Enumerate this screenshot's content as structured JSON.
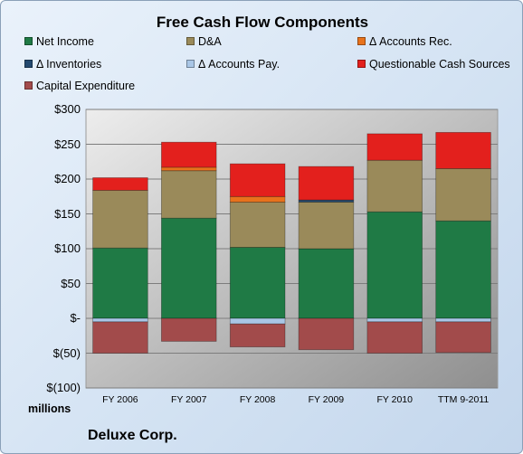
{
  "chart_data": {
    "type": "bar",
    "stacked": true,
    "title": "Free Cash Flow Components",
    "units_label": "millions",
    "company": "Deluxe Corp.",
    "categories": [
      "FY 2006",
      "FY 2007",
      "FY 2008",
      "FY 2009",
      "FY 2010",
      "TTM 9-2011"
    ],
    "y_ticks": [
      "$300",
      "$250",
      "$200",
      "$150",
      "$100",
      "$50",
      "$-",
      "$(50)",
      "$(100)"
    ],
    "ylim": [
      -100,
      300
    ],
    "grid": true,
    "legend_position": "top",
    "series": [
      {
        "name": "Net Income",
        "color": "#1f7a45",
        "values": [
          101,
          144,
          102,
          100,
          153,
          140
        ]
      },
      {
        "name": "D&A",
        "color": "#9a8a5a",
        "values": [
          83,
          68,
          65,
          67,
          74,
          75
        ]
      },
      {
        "name": "Δ Accounts Rec.",
        "color": "#e8721c",
        "values": [
          0,
          5,
          8,
          0,
          0,
          0
        ]
      },
      {
        "name": "Δ Inventories",
        "color": "#244a70",
        "values": [
          0,
          0,
          0,
          3,
          0,
          0
        ]
      },
      {
        "name": "Δ Accounts Pay.",
        "color": "#a9c6e6",
        "values": [
          -5,
          0,
          -8,
          0,
          -5,
          -5
        ]
      },
      {
        "name": "Questionable Cash Sources",
        "color": "#e3201d",
        "values": [
          18,
          36,
          47,
          48,
          38,
          52
        ]
      },
      {
        "name": "Capital Expenditure",
        "color": "#a24b4b",
        "values": [
          -45,
          -33,
          -33,
          -45,
          -45,
          -44
        ]
      }
    ]
  }
}
